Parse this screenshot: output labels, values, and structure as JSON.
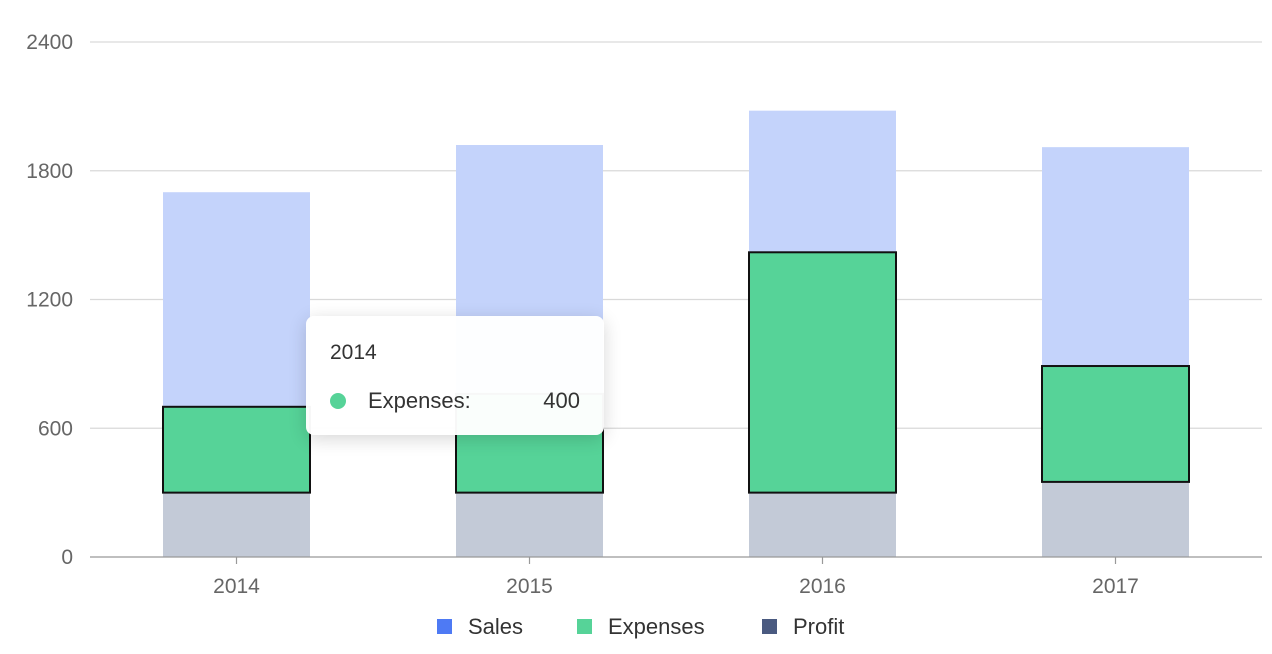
{
  "chart_data": {
    "type": "bar",
    "categories": [
      "2014",
      "2015",
      "2016",
      "2017"
    ],
    "series": [
      {
        "name": "Sales",
        "values": [
          1700,
          1920,
          2080,
          1910
        ],
        "color": "#4e7af4"
      },
      {
        "name": "Expenses",
        "values": [
          400,
          460,
          1120,
          540
        ],
        "color": "#56d398"
      },
      {
        "name": "Profit",
        "values": [
          300,
          300,
          300,
          350
        ],
        "color": "#4a5a80"
      }
    ],
    "ylim": [
      0,
      2400
    ],
    "yticks": [
      "0",
      "600",
      "1200",
      "1800",
      "2400"
    ],
    "grid": true,
    "legend": "bottom-center",
    "tooltip": {
      "title": "2014",
      "series": "Expenses:",
      "value": "400",
      "color": "#56d398"
    }
  }
}
